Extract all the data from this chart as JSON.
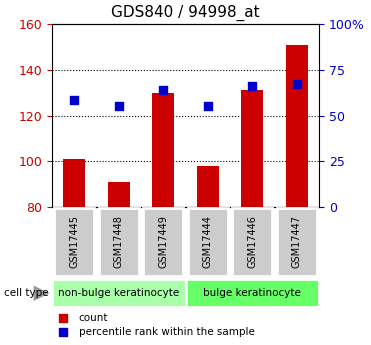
{
  "title": "GDS840 / 94998_at",
  "samples": [
    "GSM17445",
    "GSM17448",
    "GSM17449",
    "GSM17444",
    "GSM17446",
    "GSM17447"
  ],
  "counts": [
    101,
    91,
    130,
    98,
    131,
    151
  ],
  "percentile_ranks": [
    127,
    124,
    131,
    124,
    133,
    134
  ],
  "ymin": 80,
  "ymax": 160,
  "yticks_left": [
    80,
    100,
    120,
    140,
    160
  ],
  "right_yticks_pct": [
    0,
    25,
    50,
    75,
    100
  ],
  "bar_color": "#cc0000",
  "dot_color": "#0000cc",
  "bar_width": 0.5,
  "dot_size": 40,
  "groups": [
    {
      "label": "non-bulge keratinocyte",
      "indices": [
        0,
        1,
        2
      ],
      "color": "#aaffaa"
    },
    {
      "label": "bulge keratinocyte",
      "indices": [
        3,
        4,
        5
      ],
      "color": "#66ff66"
    }
  ],
  "tick_label_color_left": "#cc0000",
  "tick_label_color_right": "#0000cc",
  "sample_box_color": "#cccccc",
  "legend_items": [
    {
      "label": "count",
      "color": "#cc0000"
    },
    {
      "label": "percentile rank within the sample",
      "color": "#0000cc"
    }
  ],
  "figsize": [
    3.71,
    3.45
  ],
  "dpi": 100
}
